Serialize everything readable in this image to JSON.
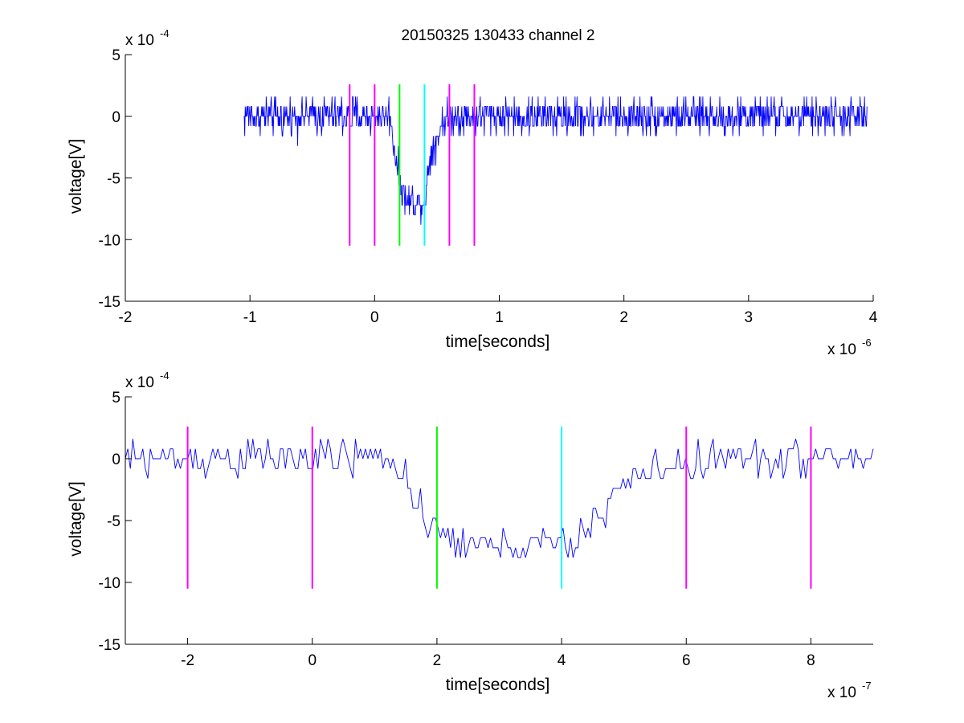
{
  "figure_title": "20150325 130433 channel 2",
  "chart_data": [
    {
      "type": "line",
      "xlabel": "time[seconds]",
      "ylabel": "voltage[V]",
      "x_scale_label": "x 10",
      "x_exponent": "-6",
      "y_scale_label": "x 10",
      "y_exponent": "-4",
      "xlim": [
        -2e-06,
        4e-06
      ],
      "ylim": [
        -0.0015,
        0.0005
      ],
      "xticks": [
        -2e-06,
        -1e-06,
        0,
        1e-06,
        2e-06,
        3e-06,
        4e-06
      ],
      "xtick_labels": [
        "-2",
        "-1",
        "0",
        "1",
        "2",
        "3",
        "4"
      ],
      "yticks": [
        -0.0015,
        -0.001,
        -0.0005,
        0,
        0.0005
      ],
      "ytick_labels": [
        "-15",
        "-10",
        "-5",
        "0",
        "5"
      ],
      "grid": false,
      "series": [
        {
          "color": "#0000ff",
          "x_range": [
            -1.05e-06,
            3.95e-06
          ],
          "points": 1250,
          "baseline": 0,
          "noise_amplitude": 0.00015,
          "features": [
            {
              "x": -1.05e-06,
              "y": 0
            },
            {
              "x": 1.3e-07,
              "y": 0
            },
            {
              "x": 1.5e-07,
              "y": -0.0002
            },
            {
              "x": 2e-07,
              "y": -0.0005
            },
            {
              "x": 2.5e-07,
              "y": -0.0007
            },
            {
              "x": 4e-07,
              "y": -0.0007
            },
            {
              "x": 4.5e-07,
              "y": -0.0003
            },
            {
              "x": 5.5e-07,
              "y": -5e-05
            },
            {
              "x": 6.5e-07,
              "y": 0
            },
            {
              "x": 3.95e-06,
              "y": 0
            }
          ]
        }
      ],
      "vertical_lines": [
        {
          "x": -2e-07,
          "color": "#ff00ff"
        },
        {
          "x": 0.0,
          "color": "#ff00ff"
        },
        {
          "x": 2e-07,
          "color": "#00ff00"
        },
        {
          "x": 4e-07,
          "color": "#00ffff"
        },
        {
          "x": 6e-07,
          "color": "#ff00ff"
        },
        {
          "x": 8e-07,
          "color": "#ff00ff"
        }
      ],
      "vline_y_range": [
        -0.00105,
        0.00026
      ]
    },
    {
      "type": "line",
      "xlabel": "time[seconds]",
      "ylabel": "voltage[V]",
      "x_scale_label": "x 10",
      "x_exponent": "-7",
      "y_scale_label": "x 10",
      "y_exponent": "-4",
      "xlim": [
        -3e-07,
        9e-07
      ],
      "ylim": [
        -0.0015,
        0.0005
      ],
      "xticks": [
        -2e-07,
        0,
        2e-07,
        4e-07,
        6e-07,
        8e-07
      ],
      "xtick_labels": [
        "-2",
        "0",
        "2",
        "4",
        "6",
        "8"
      ],
      "yticks": [
        -0.0015,
        -0.001,
        -0.0005,
        0,
        0.0005
      ],
      "ytick_labels": [
        "-15",
        "-10",
        "-5",
        "0",
        "5"
      ],
      "grid": false,
      "series": [
        {
          "color": "#0000ff",
          "x_range": [
            -3e-07,
            9e-07
          ],
          "points": 300,
          "baseline": 0,
          "noise_amplitude": 0.00015,
          "features": [
            {
              "x": -3e-07,
              "y": 0
            },
            {
              "x": 1.4e-07,
              "y": 0
            },
            {
              "x": 1.6e-07,
              "y": -0.0003
            },
            {
              "x": 1.8e-07,
              "y": -0.00055
            },
            {
              "x": 2.2e-07,
              "y": -0.00065
            },
            {
              "x": 2.6e-07,
              "y": -0.0007
            },
            {
              "x": 3.6e-07,
              "y": -0.0007
            },
            {
              "x": 4.2e-07,
              "y": -0.0007
            },
            {
              "x": 4.4e-07,
              "y": -0.0006
            },
            {
              "x": 4.8e-07,
              "y": -0.0003
            },
            {
              "x": 5.2e-07,
              "y": -0.00015
            },
            {
              "x": 5.8e-07,
              "y": -5e-05
            },
            {
              "x": 6.5e-07,
              "y": 0
            },
            {
              "x": 9e-07,
              "y": 0
            }
          ]
        }
      ],
      "vertical_lines": [
        {
          "x": -2e-07,
          "color": "#ff00ff"
        },
        {
          "x": 0.0,
          "color": "#ff00ff"
        },
        {
          "x": 2e-07,
          "color": "#00ff00"
        },
        {
          "x": 4e-07,
          "color": "#00ffff"
        },
        {
          "x": 6e-07,
          "color": "#ff00ff"
        },
        {
          "x": 8e-07,
          "color": "#ff00ff"
        }
      ],
      "vline_y_range": [
        -0.00105,
        0.00026
      ]
    }
  ]
}
